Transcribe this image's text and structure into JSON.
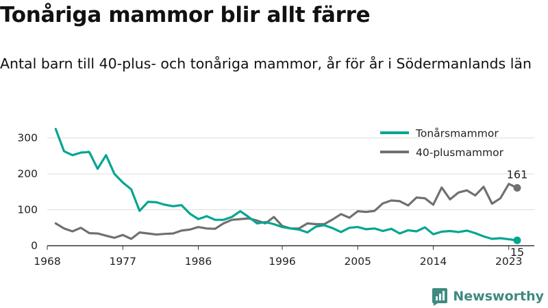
{
  "header": {
    "title": "Tonåriga mammor blir allt färre",
    "subtitle": "Antal barn till 40-plus- och tonåriga mammor, år för år i Södermanlands län"
  },
  "brand": {
    "name": "Newsworthy",
    "color": "#3d8a80",
    "icon": "newsworthy-logo-icon"
  },
  "chart_data": {
    "type": "line",
    "title": "",
    "xlabel": "",
    "ylabel": "",
    "xlim": [
      1968,
      2024
    ],
    "ylim": [
      0,
      320
    ],
    "grid": "horizontal",
    "legend": "top-right",
    "x_ticks": [
      1968,
      1977,
      1986,
      1996,
      2005,
      2014,
      2023
    ],
    "y_ticks": [
      0,
      100,
      200,
      300
    ],
    "x": [
      1969,
      1970,
      1971,
      1972,
      1973,
      1974,
      1975,
      1976,
      1977,
      1978,
      1979,
      1980,
      1981,
      1982,
      1983,
      1984,
      1985,
      1986,
      1987,
      1988,
      1989,
      1990,
      1991,
      1992,
      1993,
      1994,
      1995,
      1996,
      1997,
      1998,
      1999,
      2000,
      2001,
      2002,
      2003,
      2004,
      2005,
      2006,
      2007,
      2008,
      2009,
      2010,
      2011,
      2012,
      2013,
      2014,
      2015,
      2016,
      2017,
      2018,
      2019,
      2020,
      2021,
      2022,
      2023,
      2024
    ],
    "series": [
      {
        "name": "Tonårsmammor",
        "color": "#00a591",
        "values": [
          325,
          263,
          252,
          259,
          261,
          214,
          252,
          200,
          176,
          157,
          97,
          122,
          121,
          114,
          110,
          113,
          89,
          74,
          82,
          72,
          72,
          80,
          96,
          80,
          62,
          66,
          60,
          52,
          48,
          45,
          37,
          53,
          57,
          49,
          38,
          50,
          52,
          46,
          48,
          41,
          47,
          34,
          43,
          40,
          51,
          32,
          39,
          41,
          38,
          42,
          35,
          26,
          19,
          21,
          18,
          15
        ],
        "end_label": "15",
        "end_value": 15
      },
      {
        "name": "40-plusmammor",
        "color": "#707070",
        "values": [
          62,
          48,
          40,
          50,
          35,
          34,
          28,
          22,
          30,
          19,
          37,
          34,
          31,
          33,
          34,
          42,
          45,
          52,
          48,
          47,
          62,
          72,
          74,
          76,
          70,
          62,
          80,
          55,
          48,
          48,
          62,
          60,
          60,
          73,
          88,
          78,
          96,
          94,
          97,
          118,
          126,
          124,
          112,
          134,
          132,
          114,
          162,
          129,
          148,
          154,
          140,
          164,
          117,
          132,
          172,
          161
        ],
        "end_label": "161",
        "end_value": 161
      }
    ]
  }
}
